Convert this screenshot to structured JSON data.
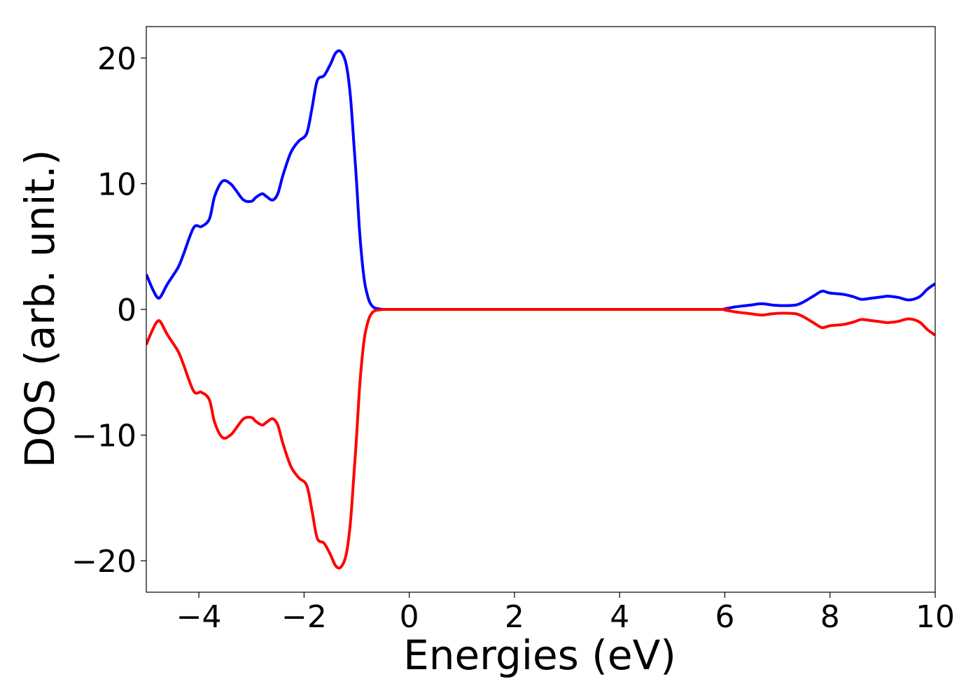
{
  "chart_data": {
    "type": "line",
    "title": "",
    "xlabel": "Energies (eV)",
    "ylabel": "DOS (arb. unit.)",
    "xlim": [
      -5,
      10
    ],
    "ylim": [
      -22.5,
      22.5
    ],
    "xticks": [
      -4,
      -2,
      0,
      2,
      4,
      6,
      8,
      10
    ],
    "xtick_labels": [
      "−4",
      "−2",
      "0",
      "2",
      "4",
      "6",
      "8",
      "10"
    ],
    "yticks": [
      20,
      10,
      0,
      -10,
      -20
    ],
    "ytick_labels": [
      "20",
      "10",
      "0",
      "−10",
      "−20"
    ],
    "grid": false,
    "legend": "none",
    "series": [
      {
        "color": "#0000ff",
        "x": [
          -5.0,
          -4.9,
          -4.8,
          -4.73,
          -4.6,
          -4.4,
          -4.3,
          -4.1,
          -3.95,
          -3.8,
          -3.7,
          -3.55,
          -3.4,
          -3.3,
          -3.15,
          -3.0,
          -2.92,
          -2.8,
          -2.72,
          -2.6,
          -2.5,
          -2.4,
          -2.25,
          -2.1,
          -1.95,
          -1.85,
          -1.75,
          -1.62,
          -1.5,
          -1.4,
          -1.3,
          -1.2,
          -1.12,
          -1.05,
          -1.0,
          -0.95,
          -0.9,
          -0.85,
          -0.8,
          -0.75,
          -0.7,
          -0.65,
          -0.55,
          -0.45,
          0.0,
          2.0,
          4.0,
          5.9,
          6.0,
          6.2,
          6.4,
          6.5,
          6.7,
          6.9,
          7.1,
          7.35,
          7.5,
          7.7,
          7.85,
          8.0,
          8.25,
          8.45,
          8.6,
          8.8,
          9.0,
          9.1,
          9.3,
          9.5,
          9.7,
          9.85,
          10.0
        ],
        "y": [
          2.8,
          1.8,
          1.0,
          1.0,
          2.0,
          3.3,
          4.3,
          6.5,
          6.6,
          7.2,
          9.0,
          10.2,
          10.0,
          9.5,
          8.7,
          8.6,
          8.9,
          9.2,
          9.0,
          8.7,
          9.2,
          10.7,
          12.5,
          13.4,
          14.0,
          16.0,
          18.2,
          18.6,
          19.5,
          20.4,
          20.5,
          19.5,
          17.0,
          13.0,
          10.0,
          6.5,
          4.0,
          2.2,
          1.2,
          0.55,
          0.25,
          0.1,
          0.03,
          0.0,
          0.0,
          0.0,
          0.0,
          0.0,
          0.05,
          0.2,
          0.3,
          0.35,
          0.45,
          0.35,
          0.3,
          0.35,
          0.6,
          1.1,
          1.45,
          1.3,
          1.2,
          1.0,
          0.8,
          0.9,
          1.0,
          1.05,
          0.95,
          0.75,
          1.0,
          1.6,
          2.05
        ]
      },
      {
        "color": "#ff0000",
        "x": [
          -5.0,
          -4.9,
          -4.8,
          -4.73,
          -4.6,
          -4.4,
          -4.3,
          -4.1,
          -3.95,
          -3.8,
          -3.7,
          -3.55,
          -3.4,
          -3.3,
          -3.15,
          -3.0,
          -2.92,
          -2.8,
          -2.72,
          -2.6,
          -2.5,
          -2.4,
          -2.25,
          -2.1,
          -1.95,
          -1.85,
          -1.75,
          -1.62,
          -1.5,
          -1.4,
          -1.3,
          -1.2,
          -1.12,
          -1.05,
          -1.0,
          -0.95,
          -0.9,
          -0.85,
          -0.8,
          -0.75,
          -0.7,
          -0.65,
          -0.55,
          -0.45,
          0.0,
          2.0,
          4.0,
          5.9,
          6.0,
          6.2,
          6.4,
          6.5,
          6.7,
          6.9,
          7.1,
          7.35,
          7.5,
          7.7,
          7.85,
          8.0,
          8.25,
          8.45,
          8.6,
          8.8,
          9.0,
          9.1,
          9.3,
          9.5,
          9.7,
          9.85,
          10.0
        ],
        "y": [
          -2.8,
          -1.8,
          -1.0,
          -1.0,
          -2.0,
          -3.3,
          -4.3,
          -6.5,
          -6.6,
          -7.2,
          -9.0,
          -10.2,
          -10.0,
          -9.5,
          -8.7,
          -8.6,
          -8.9,
          -9.2,
          -9.0,
          -8.7,
          -9.2,
          -10.7,
          -12.5,
          -13.4,
          -14.0,
          -16.0,
          -18.2,
          -18.6,
          -19.5,
          -20.4,
          -20.5,
          -19.5,
          -17.0,
          -13.0,
          -10.0,
          -6.5,
          -4.0,
          -2.2,
          -1.2,
          -0.55,
          -0.25,
          -0.1,
          -0.03,
          0.0,
          0.0,
          0.0,
          0.0,
          0.0,
          -0.05,
          -0.2,
          -0.3,
          -0.35,
          -0.45,
          -0.35,
          -0.3,
          -0.35,
          -0.6,
          -1.1,
          -1.45,
          -1.3,
          -1.2,
          -1.0,
          -0.8,
          -0.9,
          -1.0,
          -1.05,
          -0.95,
          -0.75,
          -1.0,
          -1.6,
          -2.05
        ]
      }
    ]
  }
}
